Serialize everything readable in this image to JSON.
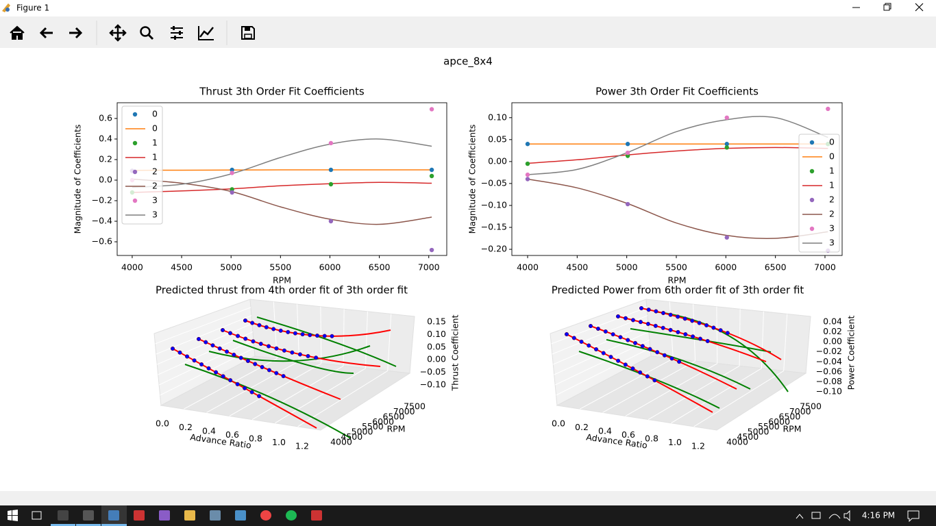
{
  "window": {
    "title": "Figure 1"
  },
  "figure": {
    "title": "apce_8x4"
  },
  "chart_data": [
    {
      "type": "scatter_line",
      "title": "Thrust 3th Order Fit Coefficients",
      "xlabel": "RPM",
      "ylabel": "Magnitude of Coefficients",
      "xlim": [
        3848,
        7182
      ],
      "ylim": [
        -0.733,
        0.753
      ],
      "xticks": [
        4000,
        4500,
        5000,
        5500,
        6000,
        6500,
        7000
      ],
      "yticks": [
        {
          "value": -0.6,
          "label": "−0.6"
        },
        {
          "value": -0.4,
          "label": "−0.4"
        },
        {
          "value": -0.2,
          "label": "−0.2"
        },
        {
          "value": 0,
          "label": "0.0"
        },
        0.2,
        0.4,
        0.6
      ],
      "legend": "upper left",
      "series": [
        {
          "name": "0",
          "kind": "scatter",
          "color": "#1f77b4",
          "x": [
            4000,
            5010,
            6010,
            7030
          ],
          "values": [
            0.09,
            0.1,
            0.1,
            0.1
          ]
        },
        {
          "name": "0",
          "kind": "line",
          "color": "#ff7f0e",
          "x": [
            4000,
            4500,
            5000,
            5500,
            6000,
            6500,
            7030
          ],
          "values": [
            0.095,
            0.097,
            0.098,
            0.1,
            0.1,
            0.1,
            0.1
          ]
        },
        {
          "name": "1",
          "kind": "scatter",
          "color": "#2ca02c",
          "x": [
            4000,
            5010,
            6010,
            7030
          ],
          "values": [
            -0.12,
            -0.09,
            -0.04,
            0.04
          ]
        },
        {
          "name": "1",
          "kind": "line",
          "color": "#d62728",
          "x": [
            4000,
            4500,
            5000,
            5500,
            6000,
            6500,
            7030
          ],
          "values": [
            -0.12,
            -0.105,
            -0.085,
            -0.055,
            -0.035,
            -0.022,
            -0.03
          ]
        },
        {
          "name": "2",
          "kind": "scatter",
          "color": "#9467bd",
          "x": [
            4000,
            5010,
            6010,
            7030
          ],
          "values": [
            0.09,
            -0.12,
            -0.4,
            -0.68
          ]
        },
        {
          "name": "2",
          "kind": "line",
          "color": "#8c564b",
          "x": [
            4000,
            4500,
            5000,
            5500,
            6000,
            6500,
            7030
          ],
          "values": [
            0.01,
            -0.03,
            -0.11,
            -0.26,
            -0.38,
            -0.43,
            -0.36
          ]
        },
        {
          "name": "3",
          "kind": "scatter",
          "color": "#e377c2",
          "x": [
            4000,
            5010,
            6010,
            7030
          ],
          "values": [
            0.0,
            0.07,
            0.36,
            0.69
          ]
        },
        {
          "name": "3",
          "kind": "line",
          "color": "#7f7f7f",
          "x": [
            4000,
            4500,
            5000,
            5500,
            6000,
            6500,
            7030
          ],
          "values": [
            -0.07,
            -0.04,
            0.06,
            0.22,
            0.35,
            0.4,
            0.33
          ]
        }
      ]
    },
    {
      "type": "scatter_line",
      "title": "Power 3th Order Fit Coefficients",
      "xlabel": "RPM",
      "ylabel": "Magnitude of Coefficients",
      "xlim": [
        3841,
        7173
      ],
      "ylim": [
        -0.214,
        0.134
      ],
      "xticks": [
        4000,
        4500,
        5000,
        5500,
        6000,
        6500,
        7000
      ],
      "yticks": [
        {
          "value": -0.2,
          "label": "−0.20"
        },
        {
          "value": -0.15,
          "label": "−0.15"
        },
        {
          "value": -0.1,
          "label": "−0.10"
        },
        {
          "value": -0.05,
          "label": "−0.05"
        },
        {
          "value": 0,
          "label": "0.00"
        },
        0.05,
        {
          "value": 0.1,
          "label": "0.10"
        }
      ],
      "legend": "lower right",
      "series": [
        {
          "name": "0",
          "kind": "scatter",
          "color": "#1f77b4",
          "x": [
            4000,
            5010,
            6010,
            7030
          ],
          "values": [
            0.04,
            0.04,
            0.04,
            0.04
          ]
        },
        {
          "name": "0",
          "kind": "line",
          "color": "#ff7f0e",
          "x": [
            4000,
            4500,
            5000,
            5500,
            6000,
            6500,
            7030
          ],
          "values": [
            0.04,
            0.04,
            0.04,
            0.04,
            0.04,
            0.04,
            0.04
          ]
        },
        {
          "name": "1",
          "kind": "scatter",
          "color": "#2ca02c",
          "x": [
            4000,
            5010,
            6010,
            7030
          ],
          "values": [
            -0.005,
            0.013,
            0.032,
            0.04
          ]
        },
        {
          "name": "1",
          "kind": "line",
          "color": "#d62728",
          "x": [
            4000,
            4500,
            5000,
            5500,
            6000,
            6500,
            7030
          ],
          "values": [
            -0.004,
            0.004,
            0.015,
            0.024,
            0.03,
            0.032,
            0.03
          ]
        },
        {
          "name": "2",
          "kind": "scatter",
          "color": "#9467bd",
          "x": [
            4000,
            5010,
            6010,
            7030
          ],
          "values": [
            -0.04,
            -0.097,
            -0.173,
            -0.203
          ]
        },
        {
          "name": "2",
          "kind": "line",
          "color": "#8c564b",
          "x": [
            4000,
            4500,
            5000,
            5500,
            6000,
            6500,
            7030
          ],
          "values": [
            -0.04,
            -0.06,
            -0.095,
            -0.14,
            -0.168,
            -0.175,
            -0.16
          ]
        },
        {
          "name": "3",
          "kind": "scatter",
          "color": "#e377c2",
          "x": [
            4000,
            5010,
            6010,
            7030
          ],
          "values": [
            -0.03,
            0.02,
            0.1,
            0.12
          ]
        },
        {
          "name": "3",
          "kind": "line",
          "color": "#7f7f7f",
          "x": [
            4000,
            4500,
            5000,
            5500,
            6000,
            6500,
            7030
          ],
          "values": [
            -0.03,
            -0.018,
            0.02,
            0.068,
            0.095,
            0.1,
            0.055
          ]
        }
      ]
    },
    {
      "type": "line3d",
      "title": "Predicted thrust from 4th order fit of 3th order fit",
      "xlabel": "Advance Ratio",
      "ylabel": "RPM",
      "zlabel": "Thrust Coefficient",
      "xticks": [
        {
          "value": 0,
          "label": "0.0"
        },
        0.2,
        0.4,
        0.6,
        0.8,
        {
          "value": 1,
          "label": "1.0"
        },
        1.2
      ],
      "yticks": [
        4000,
        4500,
        5000,
        5500,
        6000,
        6500,
        7000,
        7500
      ],
      "zticks": [
        {
          "value": -0.1,
          "label": "−0.10"
        },
        {
          "value": -0.05,
          "label": "−0.05"
        },
        {
          "value": 0,
          "label": "0.00"
        },
        0.05,
        {
          "value": 0.1,
          "label": "0.10"
        },
        0.15
      ]
    },
    {
      "type": "line3d",
      "title": "Predicted Power from 6th order fit of 3th order fit",
      "xlabel": "Advance Ratio",
      "ylabel": "RPM",
      "zlabel": "Power Coefficient",
      "xticks": [
        {
          "value": 0,
          "label": "0.0"
        },
        0.2,
        0.4,
        0.6,
        0.8,
        {
          "value": 1,
          "label": "1.0"
        },
        1.2
      ],
      "yticks": [
        4000,
        4500,
        5000,
        5500,
        6000,
        6500,
        7000,
        7500
      ],
      "zticks": [
        {
          "value": -0.1,
          "label": "−0.10"
        },
        {
          "value": -0.08,
          "label": "−0.08"
        },
        {
          "value": -0.06,
          "label": "−0.06"
        },
        {
          "value": -0.04,
          "label": "−0.04"
        },
        {
          "value": -0.02,
          "label": "−0.02"
        },
        {
          "value": 0,
          "label": "0.00"
        },
        0.02,
        0.04
      ]
    }
  ],
  "taskbar": {
    "time": "4:16 PM"
  }
}
